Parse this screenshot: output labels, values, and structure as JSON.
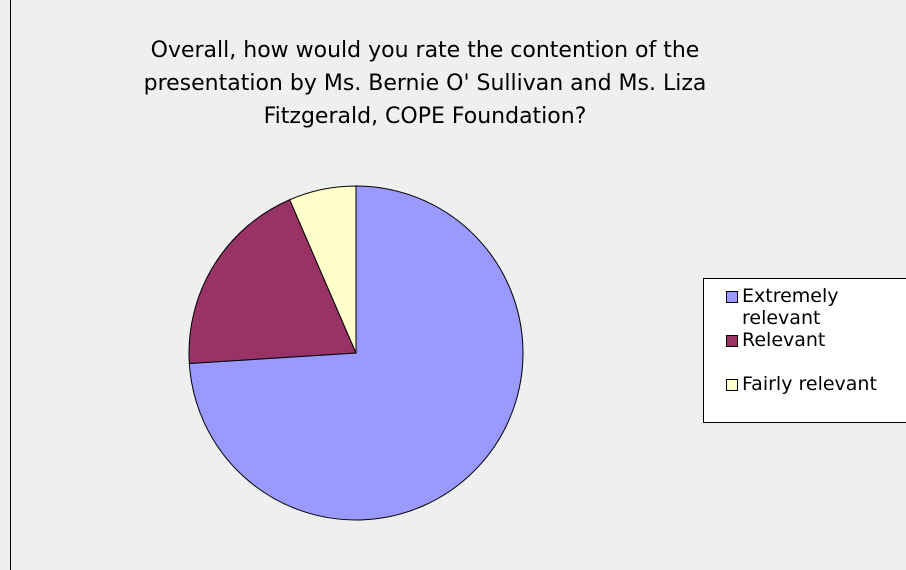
{
  "chart_data": {
    "type": "pie",
    "title": "Overall, how would you rate the contention of the presentation by Ms. Bernie O' Sullivan and Ms. Liza Fitzgerald, COPE Foundation?",
    "categories": [
      "Extremely relevant",
      "Relevant",
      "Fairly relevant"
    ],
    "values": [
      74,
      19.5,
      6.5
    ],
    "colors": [
      "#9999ff",
      "#993366",
      "#ffffcc"
    ],
    "legend": "right"
  }
}
